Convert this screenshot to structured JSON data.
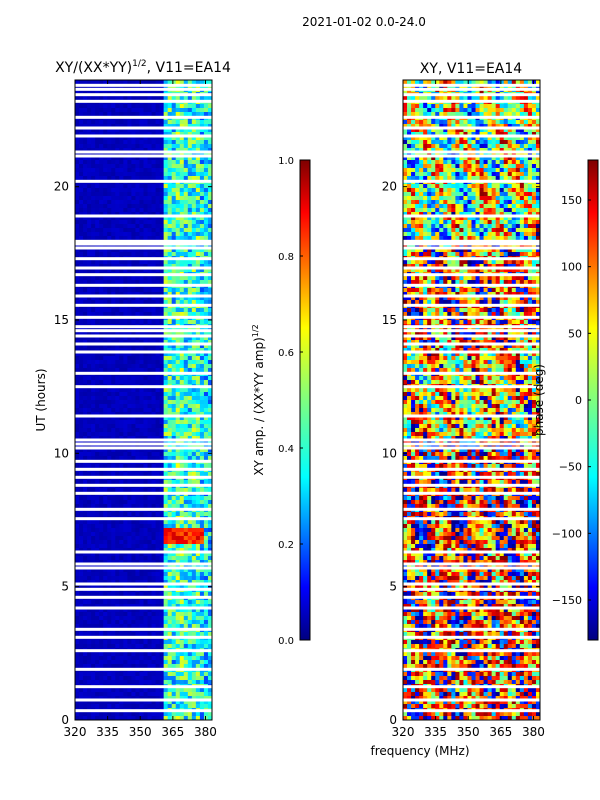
{
  "suptitle": "2021-01-02 0.0-24.0",
  "xlabel": "frequency (MHz)",
  "colors": {
    "jet": [
      "#00007f",
      "#0000ff",
      "#007fff",
      "#00ffff",
      "#7fff7f",
      "#ffff00",
      "#ff7f00",
      "#ff0000",
      "#7f0000"
    ],
    "gap": "#ffffff"
  },
  "chart_data": [
    {
      "type": "heatmap",
      "title": "XY/(XX*YY)",
      "title_sup": "1/2",
      "title_suffix": ", V11=EA14",
      "xlabel": "",
      "ylabel": "UT (hours)",
      "xlim": [
        320,
        383
      ],
      "ylim": [
        0,
        24
      ],
      "xticks": [
        320,
        335,
        350,
        365,
        380
      ],
      "yticks": [
        0,
        5,
        10,
        15,
        20
      ],
      "colorbar": {
        "label": "XY amp. / (XX*YY amp)",
        "label_sup": "1/2",
        "range": [
          0.0,
          1.0
        ],
        "ticks": [
          "0.0",
          "0.2",
          "0.4",
          "0.6",
          "0.8",
          "1.0"
        ],
        "tick_values": [
          0.0,
          0.2,
          0.4,
          0.6,
          0.8,
          1.0
        ]
      },
      "bands_mhz": [
        [
          360,
          364
        ],
        [
          364,
          367
        ],
        [
          367,
          370
        ],
        [
          370,
          374
        ],
        [
          374,
          377
        ],
        [
          377,
          383
        ]
      ],
      "band_values": [
        0.42,
        0.38,
        0.45,
        0.4,
        0.43,
        0.36
      ],
      "background_value": 0.06,
      "highlight": {
        "ut_range": [
          6.6,
          7.2
        ],
        "freq_range": [
          360,
          380
        ],
        "value": 0.85
      }
    },
    {
      "type": "heatmap",
      "title": "XY, V11=EA14",
      "xlabel": "",
      "ylabel": "",
      "xlim": [
        320,
        383
      ],
      "ylim": [
        0,
        24
      ],
      "xticks": [
        320,
        335,
        350,
        365,
        380
      ],
      "yticks": [
        0,
        5,
        10,
        15,
        20
      ],
      "colorbar": {
        "label": "phase (deg)",
        "range": [
          -180,
          180
        ],
        "ticks": [
          "150",
          "100",
          "50",
          "0",
          "−50",
          "−100",
          "−150"
        ],
        "tick_values": [
          150,
          100,
          50,
          0,
          -50,
          -100,
          -150
        ]
      },
      "regions": [
        {
          "ut_range": [
            0,
            7.5
          ],
          "mean_phase": 130
        },
        {
          "ut_range": [
            7.5,
            10.5
          ],
          "mean_phase": 150
        },
        {
          "ut_range": [
            10.5,
            14
          ],
          "mean_phase": 60
        },
        {
          "ut_range": [
            14,
            18
          ],
          "mean_phase": 110
        },
        {
          "ut_range": [
            18,
            24
          ],
          "mean_phase": 10
        }
      ]
    }
  ],
  "gaps_ut": [
    0.35,
    0.75,
    1.25,
    1.9,
    2.6,
    3.1,
    3.4,
    4.2,
    4.6,
    4.9,
    5.1,
    5.7,
    5.85,
    6.3,
    7.55,
    7.9,
    8.5,
    8.8,
    9.1,
    9.4,
    9.7,
    10.2,
    10.35,
    10.5,
    11.4,
    12.5,
    13.0,
    13.8,
    14.1,
    14.4,
    14.6,
    14.75,
    15.1,
    15.55,
    15.9,
    16.3,
    16.7,
    16.95,
    17.3,
    17.7,
    17.85,
    17.95,
    18.9,
    20.2,
    21.15,
    21.3,
    21.9,
    22.2,
    22.6,
    23.2,
    23.45,
    23.65,
    23.8
  ]
}
